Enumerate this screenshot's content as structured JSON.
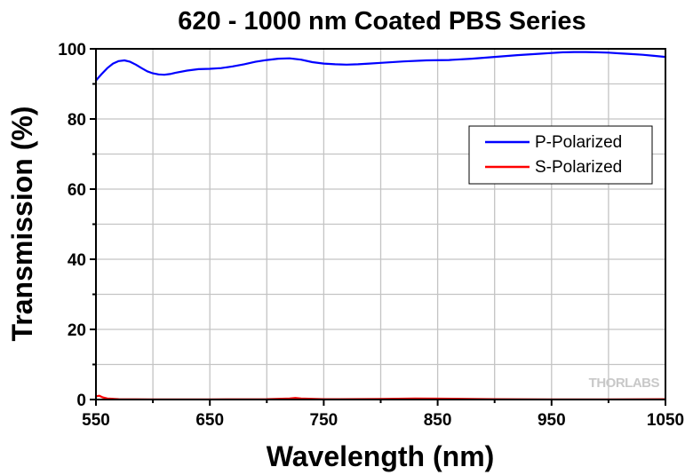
{
  "chart_data": {
    "type": "line",
    "title": "620 - 1000 nm Coated PBS Series",
    "xlabel": "Wavelength (nm)",
    "ylabel": "Transmission (%)",
    "xlim": [
      550,
      1050
    ],
    "ylim": [
      0,
      100
    ],
    "x_ticks": [
      550,
      650,
      750,
      850,
      950,
      1050
    ],
    "y_ticks": [
      0,
      20,
      40,
      60,
      80,
      100
    ],
    "grid": true,
    "legend_position": "top-right",
    "series": [
      {
        "name": "P-Polarized",
        "color": "#0000ff",
        "x": [
          550,
          555,
          560,
          565,
          570,
          575,
          580,
          585,
          590,
          595,
          600,
          605,
          610,
          615,
          620,
          630,
          640,
          650,
          660,
          670,
          680,
          690,
          700,
          710,
          720,
          730,
          740,
          750,
          760,
          770,
          780,
          790,
          800,
          820,
          840,
          860,
          880,
          900,
          920,
          940,
          950,
          960,
          970,
          980,
          990,
          1000,
          1010,
          1020,
          1030,
          1040,
          1050
        ],
        "y": [
          91,
          92.8,
          94.5,
          95.8,
          96.5,
          96.7,
          96.3,
          95.5,
          94.5,
          93.6,
          93,
          92.7,
          92.6,
          92.8,
          93.2,
          93.8,
          94.2,
          94.3,
          94.5,
          95,
          95.6,
          96.3,
          96.8,
          97.2,
          97.3,
          96.9,
          96.2,
          95.8,
          95.6,
          95.5,
          95.6,
          95.8,
          96,
          96.4,
          96.7,
          96.8,
          97.2,
          97.7,
          98.2,
          98.6,
          98.8,
          99,
          99.1,
          99.1,
          99,
          98.9,
          98.7,
          98.5,
          98.3,
          98,
          97.7
        ]
      },
      {
        "name": "S-Polarized",
        "color": "#ff0000",
        "x": [
          550,
          553,
          556,
          560,
          570,
          600,
          650,
          700,
          720,
          725,
          730,
          750,
          800,
          830,
          850,
          900,
          950,
          1000,
          1050
        ],
        "y": [
          0.9,
          1.1,
          0.6,
          0.3,
          0.1,
          0.05,
          0.05,
          0.1,
          0.3,
          0.45,
          0.3,
          0.1,
          0.15,
          0.3,
          0.25,
          0.1,
          0.05,
          0.05,
          0.1
        ]
      }
    ],
    "watermark": "THORLABS"
  }
}
